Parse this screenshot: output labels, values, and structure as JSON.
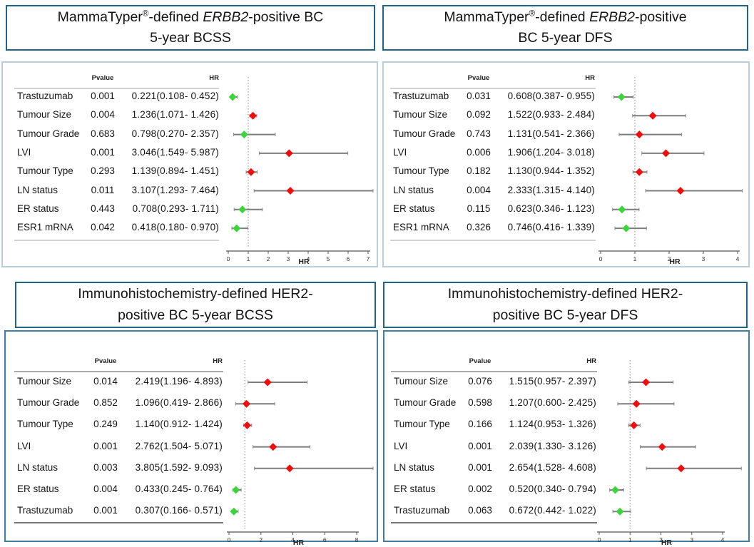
{
  "figure": {
    "background": "#ffffff",
    "description": "Four forest plots of multivariate Cox regression hazard ratios"
  },
  "colors": {
    "red_diamond": "#f20d0d",
    "green_diamond": "#3bd53b",
    "ci_line": "#7d7d7d",
    "reference_line": "#9a9a9a",
    "axis": "#555555",
    "title_border": "#1f6386",
    "top_panel_border": "#b7cedb",
    "bottom_panel_border": "#3f7fa0",
    "text": "#151515"
  },
  "chart_data": [
    {
      "type": "scatter",
      "subtype": "forest-plot",
      "title_lines": [
        "MammaTyper®-defined ERBB2-positive BC",
        "5-year BCSS"
      ],
      "columns": {
        "pvalue": "Pvalue",
        "hr": "HR"
      },
      "xlabel": "HR",
      "xlim": [
        0,
        7
      ],
      "xticks": [
        0,
        1,
        2,
        3,
        4,
        5,
        6,
        7
      ],
      "reference_line": 1,
      "rows": [
        {
          "label": "Trastuzumab",
          "pvalue": "0.001",
          "hr_ci": "0.221(0.108- 0.452)",
          "hr": 0.221,
          "ci_low": 0.108,
          "ci_high": 0.452,
          "marker": "green"
        },
        {
          "label": "Tumour Size",
          "pvalue": "0.004",
          "hr_ci": "1.236(1.071- 1.426)",
          "hr": 1.236,
          "ci_low": 1.071,
          "ci_high": 1.426,
          "marker": "red"
        },
        {
          "label": "Tumour Grade",
          "pvalue": "0.683",
          "hr_ci": "0.798(0.270- 2.357)",
          "hr": 0.798,
          "ci_low": 0.27,
          "ci_high": 2.357,
          "marker": "green"
        },
        {
          "label": "LVI",
          "pvalue": "0.001",
          "hr_ci": "3.046(1.549- 5.987)",
          "hr": 3.046,
          "ci_low": 1.549,
          "ci_high": 5.987,
          "marker": "red"
        },
        {
          "label": "Tumour Type",
          "pvalue": "0.293",
          "hr_ci": "1.139(0.894- 1.451)",
          "hr": 1.139,
          "ci_low": 0.894,
          "ci_high": 1.451,
          "marker": "red"
        },
        {
          "label": "LN status",
          "pvalue": "0.011",
          "hr_ci": "3.107(1.293- 7.464)",
          "hr": 3.107,
          "ci_low": 1.293,
          "ci_high": 7.464,
          "marker": "red"
        },
        {
          "label": "ER status",
          "pvalue": "0.443",
          "hr_ci": "0.708(0.293- 1.711)",
          "hr": 0.708,
          "ci_low": 0.293,
          "ci_high": 1.711,
          "marker": "green"
        },
        {
          "label": "ESR1 mRNA",
          "pvalue": "0.042",
          "hr_ci": "0.418(0.180- 0.970)",
          "hr": 0.418,
          "ci_low": 0.18,
          "ci_high": 0.97,
          "marker": "green"
        }
      ]
    },
    {
      "type": "scatter",
      "subtype": "forest-plot",
      "title_lines": [
        "MammaTyper®-defined ERBB2-positive",
        "BC 5-year DFS"
      ],
      "columns": {
        "pvalue": "Pvalue",
        "hr": "HR"
      },
      "xlabel": "HR",
      "xlim": [
        0,
        4
      ],
      "xticks": [
        0,
        1,
        2,
        3,
        4
      ],
      "reference_line": 1,
      "rows": [
        {
          "label": "Trastuzumab",
          "pvalue": "0.031",
          "hr_ci": "0.608(0.387- 0.955)",
          "hr": 0.608,
          "ci_low": 0.387,
          "ci_high": 0.955,
          "marker": "green"
        },
        {
          "label": "Tumour Size",
          "pvalue": "0.092",
          "hr_ci": "1.522(0.933- 2.484)",
          "hr": 1.522,
          "ci_low": 0.933,
          "ci_high": 2.484,
          "marker": "red"
        },
        {
          "label": "Tumour Grade",
          "pvalue": "0.743",
          "hr_ci": "1.131(0.541- 2.366)",
          "hr": 1.131,
          "ci_low": 0.541,
          "ci_high": 2.366,
          "marker": "red"
        },
        {
          "label": "LVI",
          "pvalue": "0.006",
          "hr_ci": "1.906(1.204- 3.018)",
          "hr": 1.906,
          "ci_low": 1.204,
          "ci_high": 3.018,
          "marker": "red"
        },
        {
          "label": "Tumour Type",
          "pvalue": "0.182",
          "hr_ci": "1.130(0.944- 1.352)",
          "hr": 1.13,
          "ci_low": 0.944,
          "ci_high": 1.352,
          "marker": "red"
        },
        {
          "label": "LN status",
          "pvalue": "0.004",
          "hr_ci": "2.333(1.315- 4.140)",
          "hr": 2.333,
          "ci_low": 1.315,
          "ci_high": 4.14,
          "marker": "red"
        },
        {
          "label": "ER status",
          "pvalue": "0.115",
          "hr_ci": "0.623(0.346- 1.123)",
          "hr": 0.623,
          "ci_low": 0.346,
          "ci_high": 1.123,
          "marker": "green"
        },
        {
          "label": "ESR1 mRNA",
          "pvalue": "0.326",
          "hr_ci": "0.746(0.416- 1.339)",
          "hr": 0.746,
          "ci_low": 0.416,
          "ci_high": 1.339,
          "marker": "green"
        }
      ]
    },
    {
      "type": "scatter",
      "subtype": "forest-plot",
      "title_lines": [
        "Immunohistochemistry-defined HER2-",
        "positive BC 5-year BCSS"
      ],
      "columns": {
        "pvalue": "Pvalue",
        "hr": "HR"
      },
      "xlabel": "HR",
      "xlim": [
        0,
        8
      ],
      "xticks": [
        0,
        2,
        4,
        6,
        8
      ],
      "reference_line": 1,
      "rows": [
        {
          "label": "Tumour Size",
          "pvalue": "0.014",
          "hr_ci": "2.419(1.196- 4.893)",
          "hr": 2.419,
          "ci_low": 1.196,
          "ci_high": 4.893,
          "marker": "red"
        },
        {
          "label": "Tumour Grade",
          "pvalue": "0.852",
          "hr_ci": "1.096(0.419- 2.866)",
          "hr": 1.096,
          "ci_low": 0.419,
          "ci_high": 2.866,
          "marker": "red"
        },
        {
          "label": "Tumour Type",
          "pvalue": "0.249",
          "hr_ci": "1.140(0.912- 1.424)",
          "hr": 1.14,
          "ci_low": 0.912,
          "ci_high": 1.424,
          "marker": "red"
        },
        {
          "label": "LVI",
          "pvalue": "0.001",
          "hr_ci": "2.762(1.504- 5.071)",
          "hr": 2.762,
          "ci_low": 1.504,
          "ci_high": 5.071,
          "marker": "red"
        },
        {
          "label": "LN status",
          "pvalue": "0.003",
          "hr_ci": "3.805(1.592- 9.093)",
          "hr": 3.805,
          "ci_low": 1.592,
          "ci_high": 9.093,
          "marker": "red"
        },
        {
          "label": "ER status",
          "pvalue": "0.004",
          "hr_ci": "0.433(0.245- 0.764)",
          "hr": 0.433,
          "ci_low": 0.245,
          "ci_high": 0.764,
          "marker": "green"
        },
        {
          "label": "Trastuzumab",
          "pvalue": "0.001",
          "hr_ci": "0.307(0.166- 0.571)",
          "hr": 0.307,
          "ci_low": 0.166,
          "ci_high": 0.571,
          "marker": "green"
        }
      ]
    },
    {
      "type": "scatter",
      "subtype": "forest-plot",
      "title_lines": [
        "Immunohistochemistry-defined HER2-",
        "positive BC 5-year DFS"
      ],
      "columns": {
        "pvalue": "Pvalue",
        "hr": "HR"
      },
      "xlabel": "HR",
      "xlim": [
        0,
        4
      ],
      "xticks": [
        0,
        1,
        2,
        3,
        4
      ],
      "reference_line": 1,
      "rows": [
        {
          "label": "Tumour Size",
          "pvalue": "0.076",
          "hr_ci": "1.515(0.957- 2.397)",
          "hr": 1.515,
          "ci_low": 0.957,
          "ci_high": 2.397,
          "marker": "red"
        },
        {
          "label": "Tumour Grade",
          "pvalue": "0.598",
          "hr_ci": "1.207(0.600- 2.425)",
          "hr": 1.207,
          "ci_low": 0.6,
          "ci_high": 2.425,
          "marker": "red"
        },
        {
          "label": "Tumour Type",
          "pvalue": "0.166",
          "hr_ci": "1.124(0.953- 1.326)",
          "hr": 1.124,
          "ci_low": 0.953,
          "ci_high": 1.326,
          "marker": "red"
        },
        {
          "label": "LVI",
          "pvalue": "0.001",
          "hr_ci": "2.039(1.330- 3.126)",
          "hr": 2.039,
          "ci_low": 1.33,
          "ci_high": 3.126,
          "marker": "red"
        },
        {
          "label": "LN status",
          "pvalue": "0.001",
          "hr_ci": "2.654(1.528- 4.608)",
          "hr": 2.654,
          "ci_low": 1.528,
          "ci_high": 4.608,
          "marker": "red"
        },
        {
          "label": "ER status",
          "pvalue": "0.002",
          "hr_ci": "0.520(0.340- 0.794)",
          "hr": 0.52,
          "ci_low": 0.34,
          "ci_high": 0.794,
          "marker": "green"
        },
        {
          "label": "Trastuzumab",
          "pvalue": "0.063",
          "hr_ci": "0.672(0.442- 1.022)",
          "hr": 0.672,
          "ci_low": 0.442,
          "ci_high": 1.022,
          "marker": "green"
        }
      ]
    }
  ]
}
